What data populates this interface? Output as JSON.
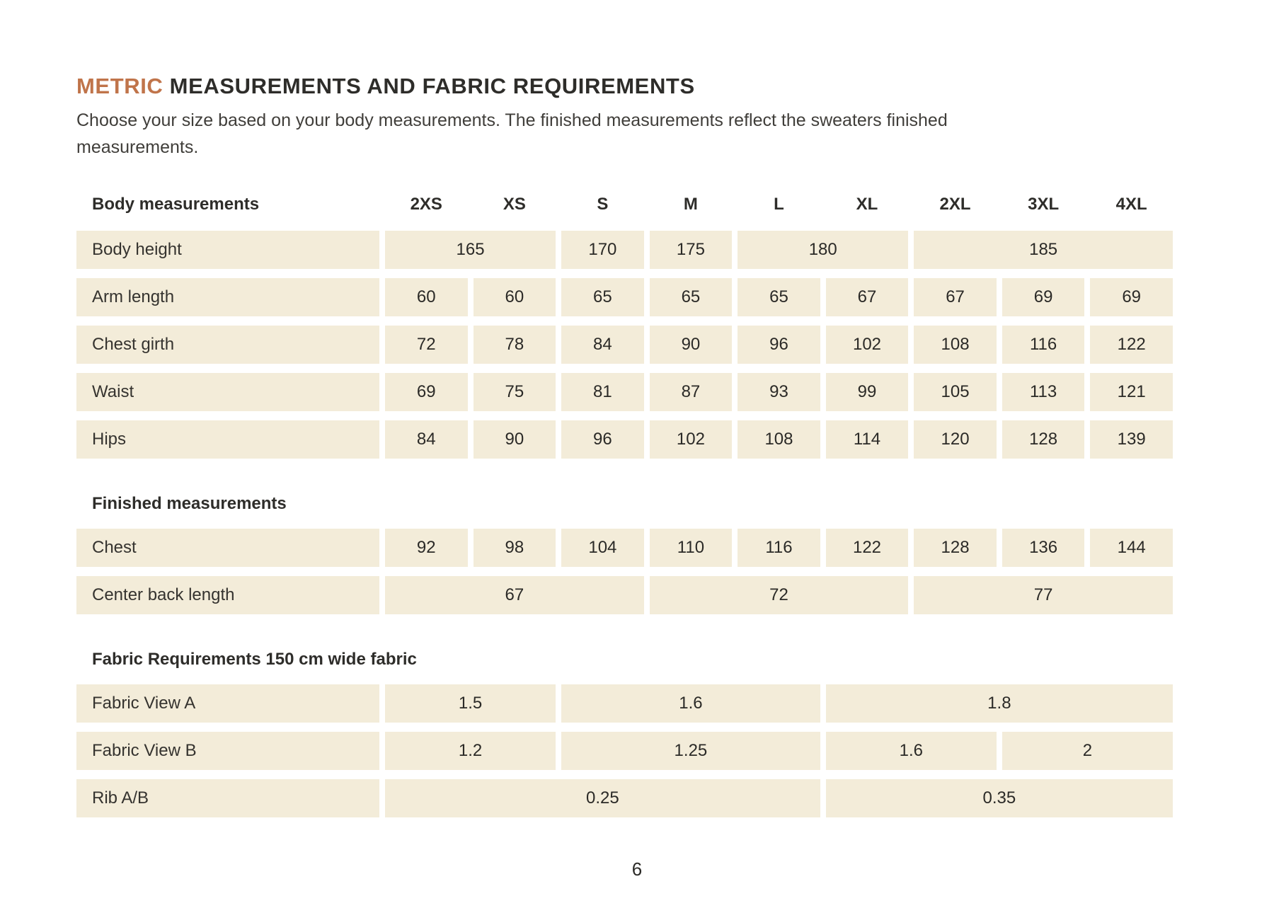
{
  "page": {
    "title": {
      "highlight": "METRIC",
      "rest": " MEASUREMENTS AND FABRIC REQUIREMENTS"
    },
    "intro_line1": "Choose your size based on your body measurements. The finished measurements reflect the sweaters finished",
    "intro_line2": "measurements.",
    "page_number": "6"
  },
  "colors": {
    "accent": "#c0744a",
    "cell_background": "#f3ecd9",
    "text": "#2b2a27"
  },
  "table": {
    "header": {
      "label": "Body measurements",
      "sizes": [
        "2XS",
        "XS",
        "S",
        "M",
        "L",
        "XL",
        "2XL",
        "3XL",
        "4XL"
      ]
    },
    "sections": [
      {
        "title": "",
        "rows": [
          {
            "label": "Body height",
            "cells": [
              {
                "value": "165",
                "span": 2
              },
              {
                "value": "170",
                "span": 1
              },
              {
                "value": "175",
                "span": 1
              },
              {
                "value": "180",
                "span": 2
              },
              {
                "value": "185",
                "span": 3
              }
            ]
          },
          {
            "label": "Arm length",
            "cells": [
              {
                "value": "60",
                "span": 1
              },
              {
                "value": "60",
                "span": 1
              },
              {
                "value": "65",
                "span": 1
              },
              {
                "value": "65",
                "span": 1
              },
              {
                "value": "65",
                "span": 1
              },
              {
                "value": "67",
                "span": 1
              },
              {
                "value": "67",
                "span": 1
              },
              {
                "value": "69",
                "span": 1
              },
              {
                "value": "69",
                "span": 1
              }
            ]
          },
          {
            "label": "Chest girth",
            "cells": [
              {
                "value": "72",
                "span": 1
              },
              {
                "value": "78",
                "span": 1
              },
              {
                "value": "84",
                "span": 1
              },
              {
                "value": "90",
                "span": 1
              },
              {
                "value": "96",
                "span": 1
              },
              {
                "value": "102",
                "span": 1
              },
              {
                "value": "108",
                "span": 1
              },
              {
                "value": "116",
                "span": 1
              },
              {
                "value": "122",
                "span": 1
              }
            ]
          },
          {
            "label": "Waist",
            "cells": [
              {
                "value": "69",
                "span": 1
              },
              {
                "value": "75",
                "span": 1
              },
              {
                "value": "81",
                "span": 1
              },
              {
                "value": "87",
                "span": 1
              },
              {
                "value": "93",
                "span": 1
              },
              {
                "value": "99",
                "span": 1
              },
              {
                "value": "105",
                "span": 1
              },
              {
                "value": "113",
                "span": 1
              },
              {
                "value": "121",
                "span": 1
              }
            ]
          },
          {
            "label": "Hips",
            "cells": [
              {
                "value": "84",
                "span": 1
              },
              {
                "value": "90",
                "span": 1
              },
              {
                "value": "96",
                "span": 1
              },
              {
                "value": "102",
                "span": 1
              },
              {
                "value": "108",
                "span": 1
              },
              {
                "value": "114",
                "span": 1
              },
              {
                "value": "120",
                "span": 1
              },
              {
                "value": "128",
                "span": 1
              },
              {
                "value": "139",
                "span": 1
              }
            ]
          }
        ]
      },
      {
        "title": "Finished measurements",
        "rows": [
          {
            "label": "Chest",
            "cells": [
              {
                "value": "92",
                "span": 1
              },
              {
                "value": "98",
                "span": 1
              },
              {
                "value": "104",
                "span": 1
              },
              {
                "value": "110",
                "span": 1
              },
              {
                "value": "116",
                "span": 1
              },
              {
                "value": "122",
                "span": 1
              },
              {
                "value": "128",
                "span": 1
              },
              {
                "value": "136",
                "span": 1
              },
              {
                "value": "144",
                "span": 1
              }
            ]
          },
          {
            "label": "Center back length",
            "cells": [
              {
                "value": "67",
                "span": 3
              },
              {
                "value": "72",
                "span": 3
              },
              {
                "value": "77",
                "span": 3
              }
            ]
          }
        ]
      },
      {
        "title": "Fabric Requirements 150 cm wide fabric",
        "rows": [
          {
            "label": "Fabric View A",
            "cells": [
              {
                "value": "1.5",
                "span": 2
              },
              {
                "value": "1.6",
                "span": 3
              },
              {
                "value": "1.8",
                "span": 4
              }
            ]
          },
          {
            "label": "Fabric View B",
            "cells": [
              {
                "value": "1.2",
                "span": 2
              },
              {
                "value": "1.25",
                "span": 3
              },
              {
                "value": "1.6",
                "span": 2
              },
              {
                "value": "2",
                "span": 2
              }
            ]
          },
          {
            "label": "Rib A/B",
            "cells": [
              {
                "value": "0.25",
                "span": 5
              },
              {
                "value": "0.35",
                "span": 4
              }
            ]
          }
        ]
      }
    ]
  }
}
